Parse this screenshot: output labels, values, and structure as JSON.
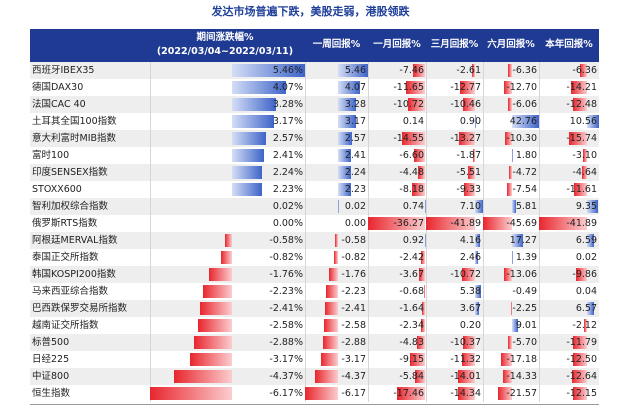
{
  "title": "发达市场普遍下跌，美股走弱，港股领跌",
  "header": {
    "name_col": "",
    "period_line1": "期间涨跌幅%",
    "period_line2": "(2022/03/04~2022/03/11)",
    "cols": [
      "一周回报%",
      "一月回报%",
      "三月回报%",
      "六月回报%",
      "本年回报%"
    ]
  },
  "colors": {
    "header_bg": "#1f3a93",
    "positive": "#3e64c8",
    "negative": "#e8262d",
    "title": "#1f3f99"
  },
  "chart_data": {
    "type": "table",
    "title": "发达市场普遍下跌，美股走弱，港股领跌",
    "columns": [
      "期间涨跌幅%",
      "一周回报%",
      "一月回报%",
      "三月回报%",
      "六月回报%",
      "本年回报%"
    ],
    "ranges": {
      "period": [
        -6.17,
        5.46
      ],
      "week": [
        -6.17,
        5.46
      ],
      "month": [
        -36.27,
        0.92
      ],
      "three_month": [
        -41.89,
        7.1
      ],
      "six_month": [
        -45.69,
        42.76
      ],
      "ytd": [
        -41.89,
        10.56
      ]
    },
    "rows": [
      {
        "name": "西班牙IBEX35",
        "period": "5.46%",
        "week": "5.46",
        "month": "-7.46",
        "three_month": "-2.61",
        "six_month": "-6.36",
        "ytd": "-6.36"
      },
      {
        "name": "德国DAX30",
        "period": "4.07%",
        "week": "4.07",
        "month": "-11.65",
        "three_month": "-12.77",
        "six_month": "-12.70",
        "ytd": "-14.21"
      },
      {
        "name": "法国CAC 40",
        "period": "3.28%",
        "week": "3.28",
        "month": "-10.72",
        "three_month": "-10.46",
        "six_month": "-6.06",
        "ytd": "-12.48"
      },
      {
        "name": "土耳其全国100指数",
        "period": "3.17%",
        "week": "3.17",
        "month": "0.14",
        "three_month": "0.90",
        "six_month": "42.76",
        "ytd": "10.56"
      },
      {
        "name": "意大利富时MIB指数",
        "period": "2.57%",
        "week": "2.57",
        "month": "-14.55",
        "three_month": "-13.27",
        "six_month": "-10.30",
        "ytd": "-15.74"
      },
      {
        "name": "富时100",
        "period": "2.41%",
        "week": "2.41",
        "month": "-6.60",
        "three_month": "-1.87",
        "six_month": "1.80",
        "ytd": "-3.10"
      },
      {
        "name": "印度SENSEX指数",
        "period": "2.24%",
        "week": "2.24",
        "month": "-4.48",
        "three_month": "-5.51",
        "six_month": "-4.72",
        "ytd": "-4.64"
      },
      {
        "name": "STOXX600",
        "period": "2.23%",
        "week": "2.23",
        "month": "-8.18",
        "three_month": "-9.33",
        "six_month": "-7.54",
        "ytd": "-11.61"
      },
      {
        "name": "智利加权综合指数",
        "period": "0.02%",
        "week": "0.02",
        "month": "0.74",
        "three_month": "7.10",
        "six_month": "5.81",
        "ytd": "9.35"
      },
      {
        "name": "俄罗斯RTS指数",
        "period": "0.00%",
        "week": "0.00",
        "month": "-36.27",
        "three_month": "-41.89",
        "six_month": "-45.69",
        "ytd": "-41.89"
      },
      {
        "name": "阿根廷MERVAL指数",
        "period": "-0.58%",
        "week": "-0.58",
        "month": "0.92",
        "three_month": "4.16",
        "six_month": "17.27",
        "ytd": "6.59"
      },
      {
        "name": "泰国正交所指数",
        "period": "-0.82%",
        "week": "-0.82",
        "month": "-2.42",
        "three_month": "2.46",
        "six_month": "1.39",
        "ytd": "0.02"
      },
      {
        "name": "韩国KOSPI200指数",
        "period": "-1.76%",
        "week": "-1.76",
        "month": "-3.67",
        "three_month": "-10.72",
        "six_month": "-13.06",
        "ytd": "-9.86"
      },
      {
        "name": "马来西亚综合指数",
        "period": "-2.23%",
        "week": "-2.23",
        "month": "-0.68",
        "three_month": "5.38",
        "six_month": "-0.49",
        "ytd": "0.04"
      },
      {
        "name": "巴西跌保罗交易所指数",
        "period": "-2.41%",
        "week": "-2.41",
        "month": "-1.64",
        "three_month": "3.67",
        "six_month": "-2.25",
        "ytd": "6.57"
      },
      {
        "name": "越南证交所指数",
        "period": "-2.58%",
        "week": "-2.58",
        "month": "-2.34",
        "three_month": "0.20",
        "six_month": "9.01",
        "ytd": "-2.12"
      },
      {
        "name": "标普500",
        "period": "-2.88%",
        "week": "-2.88",
        "month": "-4.83",
        "three_month": "-10.37",
        "six_month": "-5.70",
        "ytd": "-11.79"
      },
      {
        "name": "日经225",
        "period": "-3.17%",
        "week": "-3.17",
        "month": "-9.15",
        "three_month": "-11.32",
        "six_month": "-17.18",
        "ytd": "-12.50"
      },
      {
        "name": "中证800",
        "period": "-4.37%",
        "week": "-4.37",
        "month": "-5.84",
        "three_month": "-14.01",
        "six_month": "-14.33",
        "ytd": "-12.64"
      },
      {
        "name": "恒生指数",
        "period": "-6.17%",
        "week": "-6.17",
        "month": "-17.46",
        "three_month": "-14.34",
        "six_month": "-21.57",
        "ytd": "-12.15"
      }
    ]
  }
}
